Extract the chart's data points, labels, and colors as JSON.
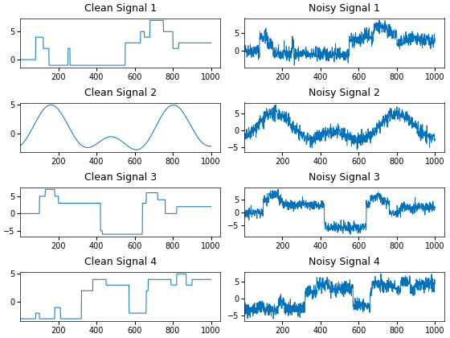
{
  "n_samples": 1000,
  "line_color": "#0072BD",
  "line_width": 0.7,
  "titles": [
    "Clean Signal 1",
    "Noisy Signal 1",
    "Clean Signal 2",
    "Noisy Signal 2",
    "Clean Signal 3",
    "Noisy Signal 3",
    "Clean Signal 4",
    "Noisy Signal 4"
  ],
  "title_fontsize": 9,
  "tick_fontsize": 7,
  "noise_std": 1.0,
  "seed": 42
}
